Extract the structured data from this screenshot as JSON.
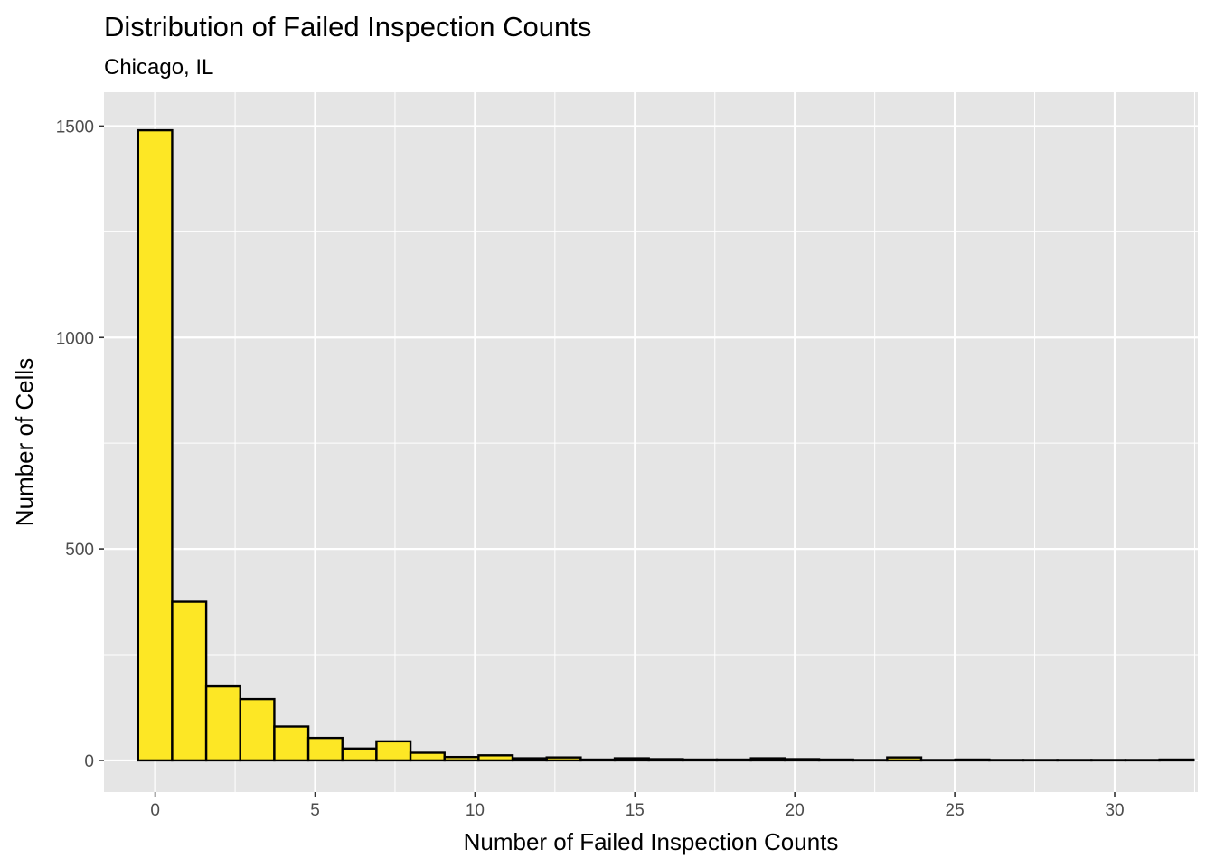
{
  "chart_data": {
    "type": "bar",
    "title": "Distribution of Failed Inspection Counts",
    "subtitle": "Chicago, IL",
    "xlabel": "Number of Failed Inspection Counts",
    "ylabel": "Number of Cells",
    "x": [
      0,
      1,
      2,
      3,
      4,
      5,
      6,
      7,
      8,
      9,
      10,
      11,
      12,
      13,
      14,
      15,
      16,
      17,
      18,
      19,
      20,
      21,
      22,
      23,
      24,
      25,
      26,
      27,
      28,
      29,
      30
    ],
    "values": [
      1490,
      375,
      175,
      145,
      80,
      53,
      28,
      45,
      18,
      8,
      12,
      5,
      7,
      2,
      5,
      3,
      2,
      2,
      5,
      3,
      2,
      1,
      7,
      1,
      2,
      1,
      1,
      1,
      1,
      1,
      2
    ],
    "bin_width": 1.0645,
    "xlim": [
      -1.6,
      32.6
    ],
    "ylim": [
      -75,
      1580
    ],
    "x_ticks": [
      0,
      5,
      10,
      15,
      20,
      25,
      30
    ],
    "x_tick_labels": [
      "0",
      "5",
      "10",
      "15",
      "20",
      "25",
      "30"
    ],
    "y_ticks": [
      0,
      500,
      1000,
      1500
    ],
    "y_tick_labels": [
      "0",
      "500",
      "1000",
      "1500"
    ],
    "grid": true,
    "legend": "none",
    "colors": {
      "bar_fill": "#fde725",
      "bar_stroke": "#000000",
      "panel_background": "#e5e5e5",
      "grid": "#ffffff"
    }
  }
}
